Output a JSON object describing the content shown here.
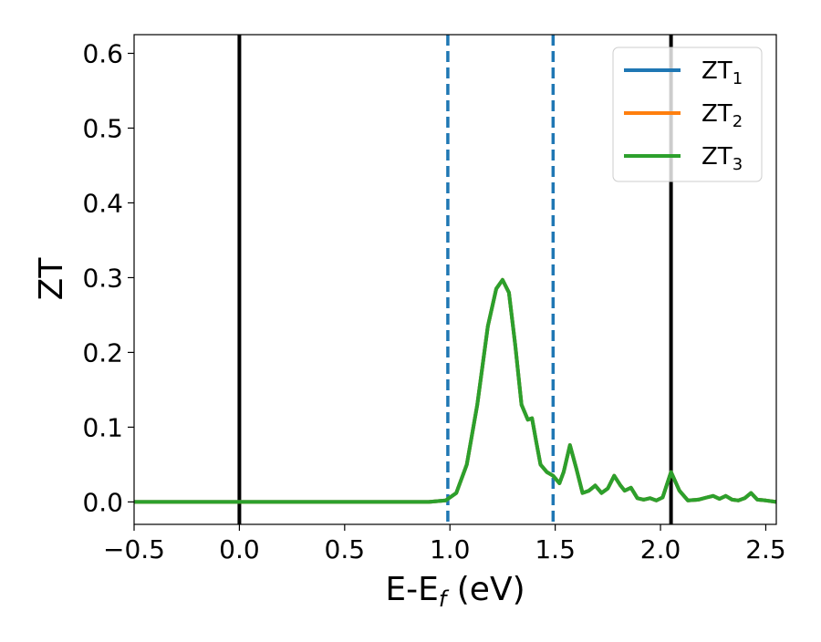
{
  "chart_data": {
    "type": "line",
    "xlabel": "E-E",
    "xlabel_sub": "f",
    "xlabel_unit": " (eV)",
    "ylabel": "ZT",
    "xlim": [
      -0.5,
      2.55
    ],
    "ylim": [
      -0.03,
      0.625
    ],
    "x_ticks": [
      -0.5,
      0.0,
      0.5,
      1.0,
      1.5,
      2.0,
      2.5
    ],
    "x_tick_labels": [
      "−0.5",
      "0.0",
      "0.5",
      "1.0",
      "1.5",
      "2.0",
      "2.5"
    ],
    "y_ticks": [
      0.0,
      0.1,
      0.2,
      0.3,
      0.4,
      0.5,
      0.6
    ],
    "y_tick_labels": [
      "0.0",
      "0.1",
      "0.2",
      "0.3",
      "0.4",
      "0.5",
      "0.6"
    ],
    "grid": false,
    "legend_position": "top-right",
    "vertical_lines": [
      {
        "x": 0.0,
        "style": "solid",
        "color": "#000000"
      },
      {
        "x": 2.05,
        "style": "solid",
        "color": "#000000"
      },
      {
        "x": 0.99,
        "style": "dashed",
        "color": "#1f77b4"
      },
      {
        "x": 1.49,
        "style": "dashed",
        "color": "#1f77b4"
      }
    ],
    "series": [
      {
        "name": "ZT",
        "sub": "1",
        "color": "#1f77b4",
        "x": [
          -0.5,
          0.9,
          0.98,
          1.03,
          1.08,
          1.13,
          1.18,
          1.22,
          1.25,
          1.28,
          1.31,
          1.34,
          1.37,
          1.39,
          1.41,
          1.43,
          1.46,
          1.49,
          1.52,
          1.54,
          1.57,
          1.6,
          1.63,
          1.66,
          1.69,
          1.72,
          1.75,
          1.78,
          1.81,
          1.83,
          1.86,
          1.89,
          1.92,
          1.95,
          1.98,
          2.01,
          2.05,
          2.09,
          2.13,
          2.18,
          2.22,
          2.25,
          2.28,
          2.31,
          2.34,
          2.37,
          2.4,
          2.43,
          2.46,
          2.5,
          2.55
        ],
        "y": [
          0.0,
          0.0,
          0.002,
          0.012,
          0.05,
          0.13,
          0.235,
          0.285,
          0.297,
          0.28,
          0.21,
          0.13,
          0.11,
          0.112,
          0.08,
          0.05,
          0.04,
          0.035,
          0.025,
          0.04,
          0.076,
          0.045,
          0.012,
          0.015,
          0.022,
          0.012,
          0.018,
          0.035,
          0.022,
          0.015,
          0.019,
          0.005,
          0.003,
          0.005,
          0.002,
          0.006,
          0.04,
          0.015,
          0.002,
          0.003,
          0.006,
          0.008,
          0.004,
          0.008,
          0.003,
          0.002,
          0.005,
          0.012,
          0.003,
          0.002,
          0.0
        ]
      },
      {
        "name": "ZT",
        "sub": "2",
        "color": "#ff7f0e",
        "x": [
          -0.5,
          0.9,
          0.98,
          1.03,
          1.08,
          1.13,
          1.18,
          1.22,
          1.25,
          1.28,
          1.31,
          1.34,
          1.37,
          1.39,
          1.41,
          1.43,
          1.46,
          1.49,
          1.52,
          1.54,
          1.57,
          1.6,
          1.63,
          1.66,
          1.69,
          1.72,
          1.75,
          1.78,
          1.81,
          1.83,
          1.86,
          1.89,
          1.92,
          1.95,
          1.98,
          2.01,
          2.05,
          2.09,
          2.13,
          2.18,
          2.22,
          2.25,
          2.28,
          2.31,
          2.34,
          2.37,
          2.4,
          2.43,
          2.46,
          2.5,
          2.55
        ],
        "y": [
          0.0,
          0.0,
          0.002,
          0.012,
          0.05,
          0.13,
          0.235,
          0.285,
          0.297,
          0.28,
          0.21,
          0.13,
          0.11,
          0.112,
          0.08,
          0.05,
          0.04,
          0.035,
          0.025,
          0.04,
          0.076,
          0.045,
          0.012,
          0.015,
          0.022,
          0.012,
          0.018,
          0.035,
          0.022,
          0.015,
          0.019,
          0.005,
          0.003,
          0.005,
          0.002,
          0.006,
          0.04,
          0.015,
          0.002,
          0.003,
          0.006,
          0.008,
          0.004,
          0.008,
          0.003,
          0.002,
          0.005,
          0.012,
          0.003,
          0.002,
          0.0
        ]
      },
      {
        "name": "ZT",
        "sub": "3",
        "color": "#2ca02c",
        "x": [
          -0.5,
          0.9,
          0.98,
          1.03,
          1.08,
          1.13,
          1.18,
          1.22,
          1.25,
          1.28,
          1.31,
          1.34,
          1.37,
          1.39,
          1.41,
          1.43,
          1.46,
          1.49,
          1.52,
          1.54,
          1.57,
          1.6,
          1.63,
          1.66,
          1.69,
          1.72,
          1.75,
          1.78,
          1.81,
          1.83,
          1.86,
          1.89,
          1.92,
          1.95,
          1.98,
          2.01,
          2.05,
          2.09,
          2.13,
          2.18,
          2.22,
          2.25,
          2.28,
          2.31,
          2.34,
          2.37,
          2.4,
          2.43,
          2.46,
          2.5,
          2.55
        ],
        "y": [
          0.0,
          0.0,
          0.002,
          0.012,
          0.05,
          0.13,
          0.235,
          0.285,
          0.297,
          0.28,
          0.21,
          0.13,
          0.11,
          0.112,
          0.08,
          0.05,
          0.04,
          0.035,
          0.025,
          0.04,
          0.076,
          0.045,
          0.012,
          0.015,
          0.022,
          0.012,
          0.018,
          0.035,
          0.022,
          0.015,
          0.019,
          0.005,
          0.003,
          0.005,
          0.002,
          0.006,
          0.04,
          0.015,
          0.002,
          0.003,
          0.006,
          0.008,
          0.004,
          0.008,
          0.003,
          0.002,
          0.005,
          0.012,
          0.003,
          0.002,
          0.0
        ]
      }
    ]
  }
}
